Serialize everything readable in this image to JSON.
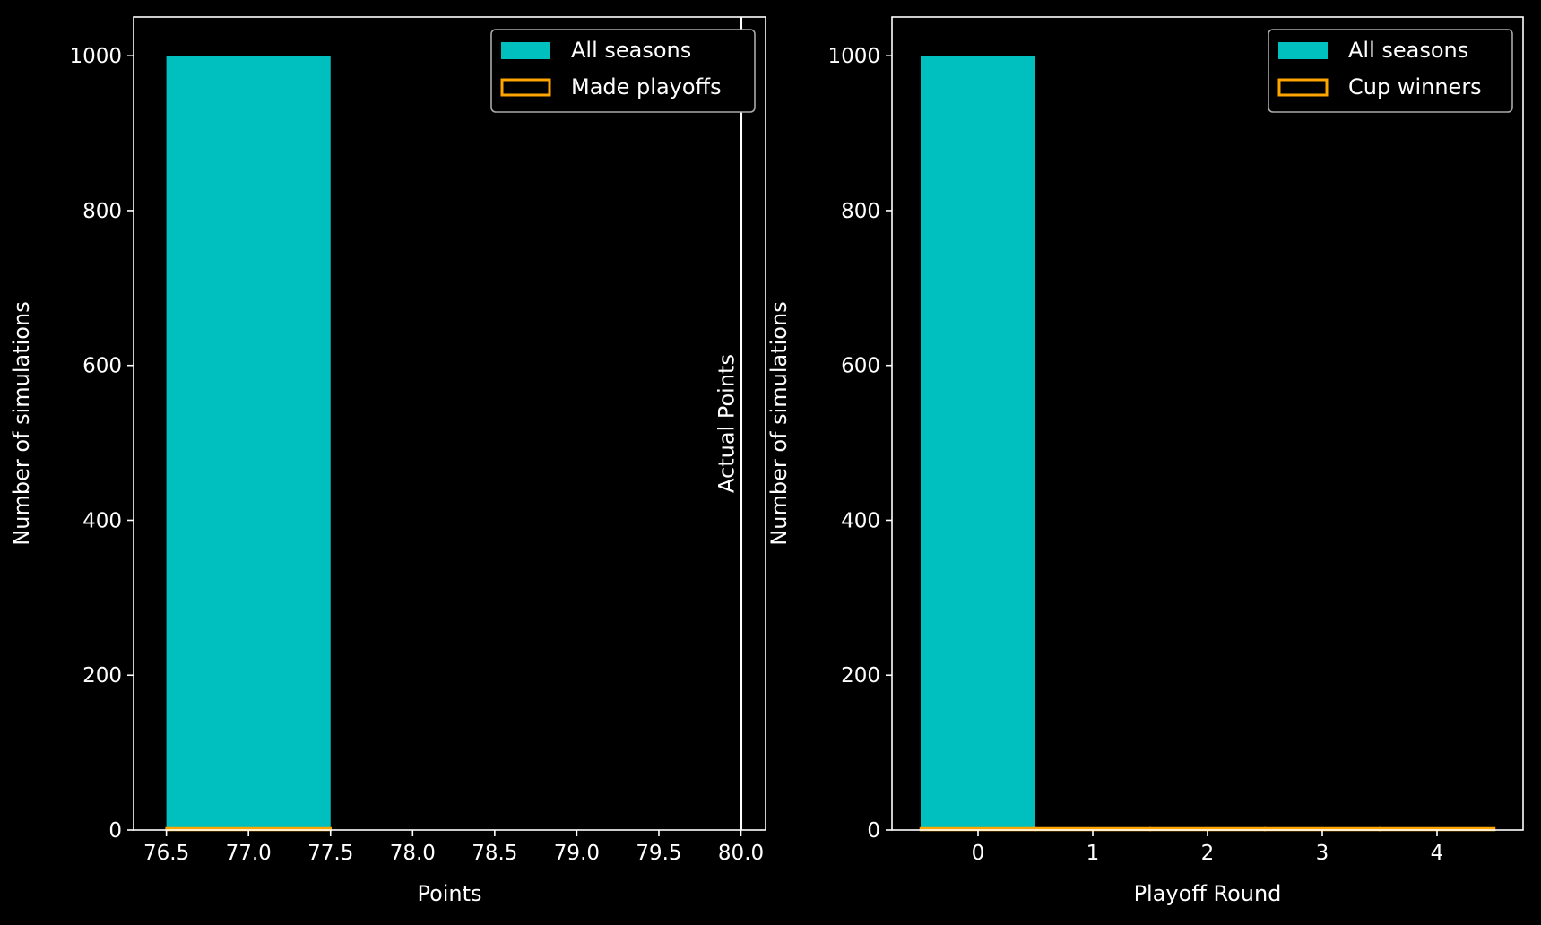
{
  "colors": {
    "background": "#000000",
    "foreground": "#ffffff",
    "all_seasons_fill": "#00bfbf",
    "outline": "#ffa500",
    "legend_border": "#aaaaaa"
  },
  "chart_data": [
    {
      "type": "bar",
      "title": "",
      "xlabel": "Points",
      "ylabel": "Number of simulations",
      "xlim": [
        76.3,
        80.15
      ],
      "ylim": [
        0,
        1050
      ],
      "xticks": [
        76.5,
        77.0,
        77.5,
        78.0,
        78.5,
        79.0,
        79.5,
        80.0
      ],
      "xtick_labels": [
        "76.5",
        "77.0",
        "77.5",
        "78.0",
        "78.5",
        "79.0",
        "79.5",
        "80.0"
      ],
      "yticks": [
        0,
        200,
        400,
        600,
        800,
        1000
      ],
      "ytick_labels": [
        "0",
        "200",
        "400",
        "600",
        "800",
        "1000"
      ],
      "grid": false,
      "legend_position": "top-right",
      "series": [
        {
          "name": "All seasons",
          "style": "filled",
          "bins": [
            {
              "x0": 76.5,
              "x1": 77.5,
              "count": 1000
            }
          ]
        },
        {
          "name": "Made playoffs",
          "style": "outline",
          "bins": [
            {
              "x0": 76.5,
              "x1": 77.5,
              "count": 0
            }
          ]
        }
      ],
      "reference_line": {
        "x": 80.0,
        "label": "Actual Points"
      }
    },
    {
      "type": "bar",
      "title": "",
      "xlabel": "Playoff Round",
      "ylabel": "Number of simulations",
      "xlim": [
        -0.75,
        4.75
      ],
      "ylim": [
        0,
        1050
      ],
      "xticks": [
        0,
        1,
        2,
        3,
        4
      ],
      "xtick_labels": [
        "0",
        "1",
        "2",
        "3",
        "4"
      ],
      "yticks": [
        0,
        200,
        400,
        600,
        800,
        1000
      ],
      "ytick_labels": [
        "0",
        "200",
        "400",
        "600",
        "800",
        "1000"
      ],
      "grid": false,
      "legend_position": "top-right",
      "series": [
        {
          "name": "All seasons",
          "style": "filled",
          "bins": [
            {
              "x0": -0.5,
              "x1": 0.5,
              "count": 1000
            },
            {
              "x0": 0.5,
              "x1": 1.5,
              "count": 0
            },
            {
              "x0": 1.5,
              "x1": 2.5,
              "count": 0
            },
            {
              "x0": 2.5,
              "x1": 3.5,
              "count": 0
            },
            {
              "x0": 3.5,
              "x1": 4.5,
              "count": 0
            }
          ]
        },
        {
          "name": "Cup winners",
          "style": "outline",
          "bins": [
            {
              "x0": -0.5,
              "x1": 0.5,
              "count": 0
            },
            {
              "x0": 0.5,
              "x1": 1.5,
              "count": 0
            },
            {
              "x0": 1.5,
              "x1": 2.5,
              "count": 0
            },
            {
              "x0": 2.5,
              "x1": 3.5,
              "count": 0
            },
            {
              "x0": 3.5,
              "x1": 4.5,
              "count": 0
            }
          ]
        }
      ]
    }
  ]
}
